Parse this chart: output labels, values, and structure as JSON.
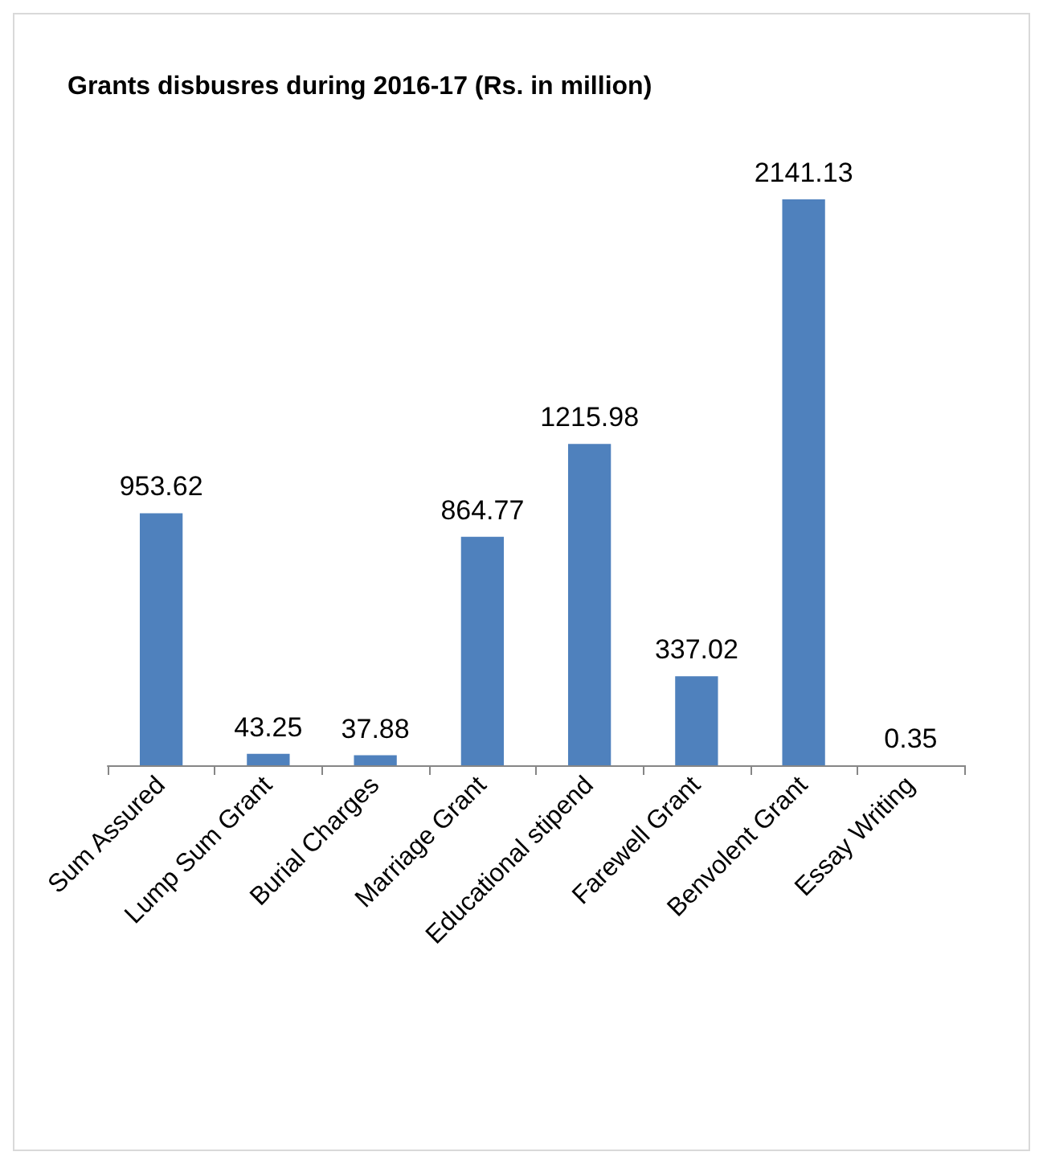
{
  "chart_data": {
    "type": "bar",
    "title": "Grants disbusres during 2016-17 (Rs. in million)",
    "categories": [
      "Sum Assured",
      "Lump Sum Grant",
      "Burial Charges",
      "Marriage Grant",
      "Educational stipend",
      "Farewell Grant",
      "Benvolent Grant",
      "Essay Writing"
    ],
    "values": [
      953.62,
      43.25,
      37.88,
      864.77,
      1215.98,
      337.02,
      2141.13,
      0.35
    ],
    "color": "#4f81bd",
    "data_labels": true
  }
}
